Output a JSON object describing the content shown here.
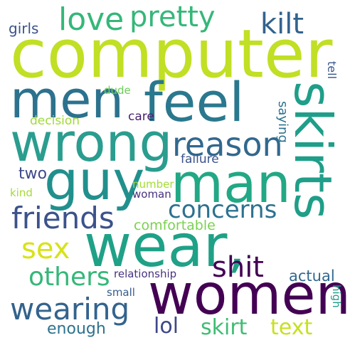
{
  "words": {
    "computer": {
      "text": "computer",
      "color": "#c1df24"
    },
    "wear": {
      "text": "wear,",
      "color": "#1fa187"
    },
    "women": {
      "text": "women",
      "color": "#440154"
    },
    "feel": {
      "text": "feel",
      "color": "#2a788e"
    },
    "men": {
      "text": "men",
      "color": "#2c728e"
    },
    "wrong": {
      "text": "wrong",
      "color": "#2a9d8f"
    },
    "guy": {
      "text": "guy",
      "color": "#21908d"
    },
    "man": {
      "text": "man",
      "color": "#22a884"
    },
    "skirts": {
      "text": "skirts",
      "color": "#1f9e89"
    },
    "reason": {
      "text": "reason",
      "color": "#31688e"
    },
    "friends": {
      "text": "friends",
      "color": "#3b528b"
    },
    "concerns": {
      "text": "concerns",
      "color": "#2c728e"
    },
    "love": {
      "text": "love",
      "color": "#35b779"
    },
    "pretty": {
      "text": "pretty",
      "color": "#35b779"
    },
    "kilt": {
      "text": "kilt",
      "color": "#33638d"
    },
    "sex": {
      "text": "sex",
      "color": "#d8e219"
    },
    "shit": {
      "text": "shit",
      "color": "#440154"
    },
    "others": {
      "text": "others",
      "color": "#35b779"
    },
    "wearing": {
      "text": "wearing",
      "color": "#33638d"
    },
    "lol": {
      "text": "lol",
      "color": "#3f4788"
    },
    "skirt": {
      "text": "skirt",
      "color": "#3fbc73"
    },
    "text": {
      "text": "text",
      "color": "#c8e020"
    },
    "enough": {
      "text": "enough",
      "color": "#2c728e"
    },
    "girls": {
      "text": "girls",
      "color": "#3b528b"
    },
    "dude": {
      "text": "dude",
      "color": "#6ccd5a"
    },
    "decision": {
      "text": "decision",
      "color": "#a0da39"
    },
    "care": {
      "text": "care",
      "color": "#481f70"
    },
    "failure": {
      "text": "failure",
      "color": "#3b528b"
    },
    "two": {
      "text": "two",
      "color": "#3e4a89"
    },
    "kind": {
      "text": "kind",
      "color": "#a5db36"
    },
    "number": {
      "text": "number",
      "color": "#a5db36"
    },
    "woman": {
      "text": "woman",
      "color": "#46327e"
    },
    "comfortable": {
      "text": "comfortable",
      "color": "#7ad151"
    },
    "relationship": {
      "text": "relationship",
      "color": "#46337f"
    },
    "actual": {
      "text": "actual",
      "color": "#31688e"
    },
    "small": {
      "text": "small",
      "color": "#365c8d"
    },
    "high": {
      "text": "high",
      "color": "#1f9e89"
    },
    "saying": {
      "text": "saying",
      "color": "#2c728e"
    },
    "tell": {
      "text": "tell",
      "color": "#39568c"
    }
  }
}
